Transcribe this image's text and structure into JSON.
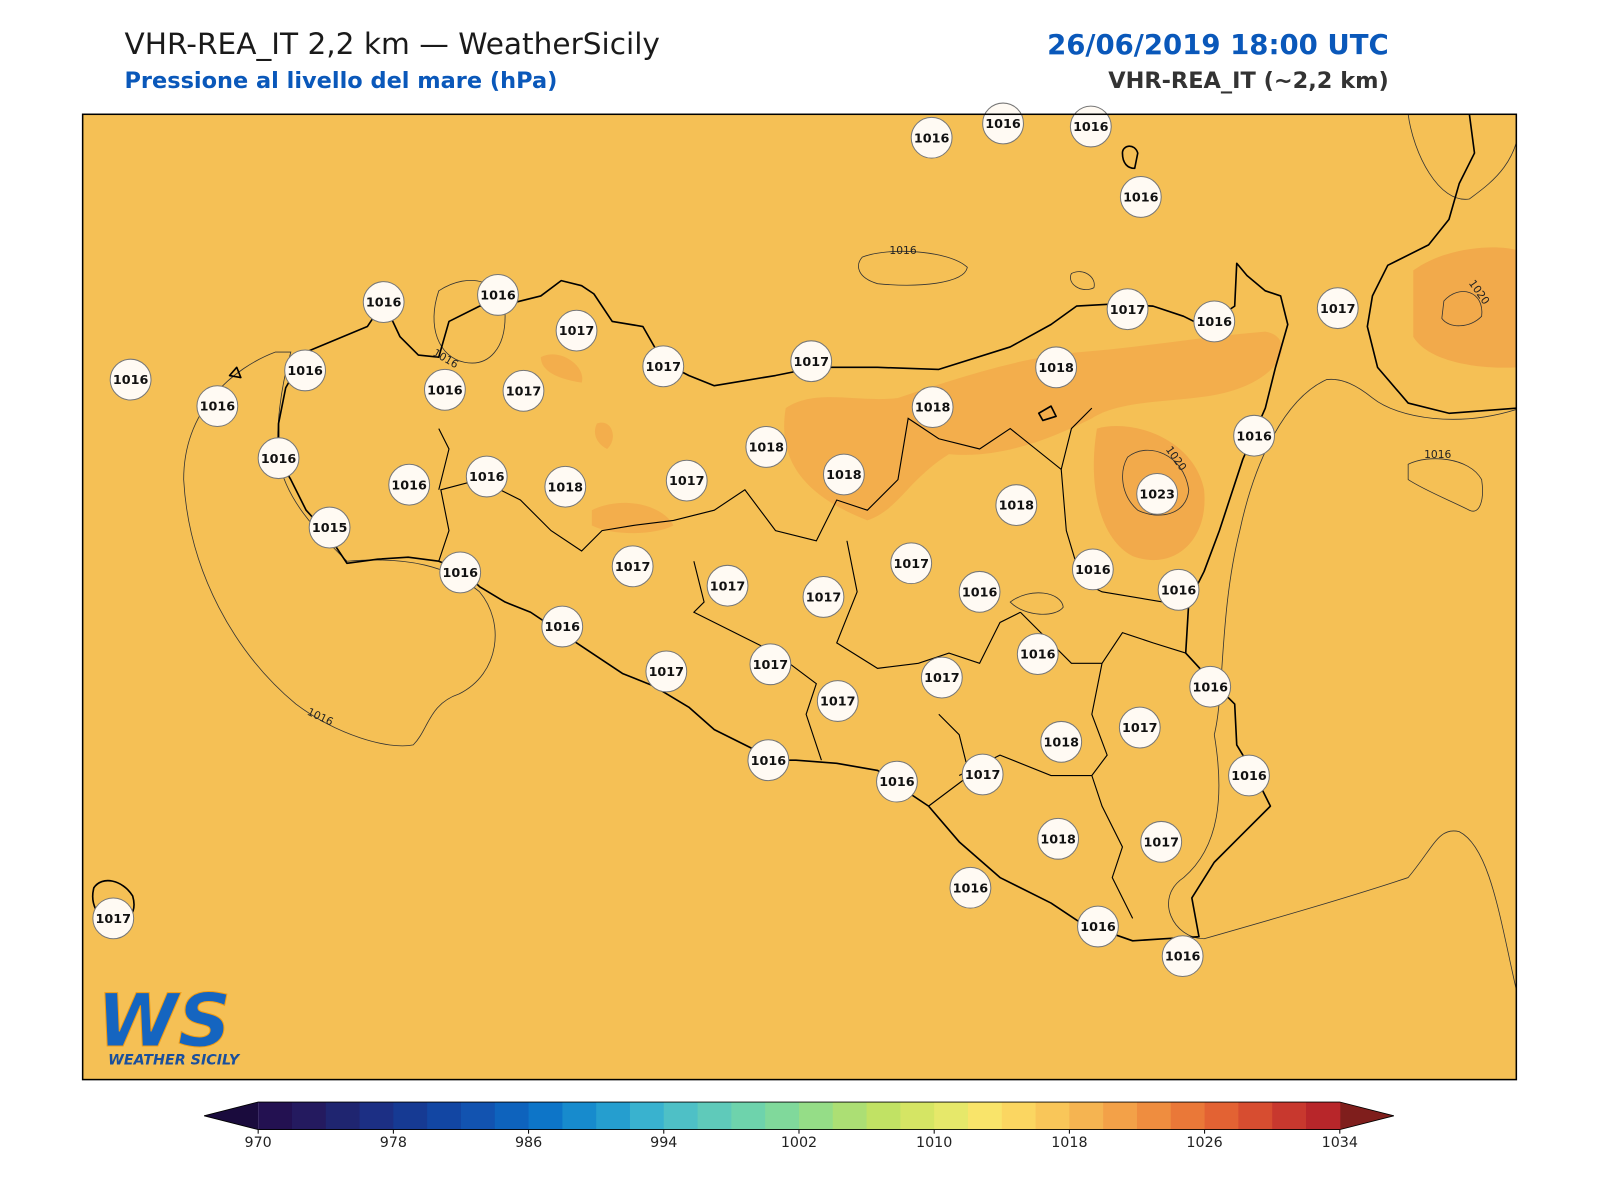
{
  "header": {
    "title": "VHR-REA_IT 2,2 km — WeatherSicily",
    "subtitle": "Pressione al livello del mare (hPa)",
    "datetime": "26/06/2019 18:00 UTC",
    "model": "VHR-REA_IT (~2,2 km)"
  },
  "map": {
    "stations": [
      1016,
      1016,
      1016,
      1016,
      1016,
      1016,
      1017,
      1016,
      1016,
      1016,
      1017,
      1017,
      1017,
      1017,
      1016,
      1017,
      1018,
      1016,
      1018,
      1016,
      1016,
      1016,
      1018,
      1017,
      1018,
      1018,
      1016,
      1023,
      1018,
      1015,
      1016,
      1017,
      1017,
      1017,
      1017,
      1016,
      1016,
      1016,
      1016,
      1017,
      1017,
      1016,
      1016,
      1017,
      1017,
      1018,
      1017,
      1016,
      1016,
      1017,
      1016,
      1018,
      1017,
      1016,
      1016,
      1016,
      1017
    ],
    "contour_labels": [
      "1016",
      "1016",
      "1016",
      "1020",
      "1020",
      "1016"
    ],
    "logo": {
      "mark": "WS",
      "name": "WEATHER SICILY"
    }
  },
  "colorbar": {
    "lim": [
      970,
      1034
    ],
    "step": 2,
    "ticks": [
      970,
      978,
      986,
      994,
      1002,
      1010,
      1018,
      1026,
      1034
    ],
    "under_color": "#1a0b3d",
    "over_color": "#7f1e1c",
    "colors": [
      "#231151",
      "#241a5f",
      "#1f2570",
      "#1c2f84",
      "#163a93",
      "#1246a3",
      "#1253b0",
      "#0e63bd",
      "#0d75c8",
      "#178bcd",
      "#259ecf",
      "#39b2cf",
      "#4ec0c6",
      "#5fcaba",
      "#6ed3ac",
      "#80d99b",
      "#95dd87",
      "#acdf74",
      "#c1e264",
      "#d5e564",
      "#e6e86a",
      "#f9e46a",
      "#fbd661",
      "#f9c659",
      "#f5b451",
      "#f3a148",
      "#ef8d3f",
      "#ea7838",
      "#e36233",
      "#d74d30",
      "#c8382e",
      "#b8262a"
    ]
  }
}
